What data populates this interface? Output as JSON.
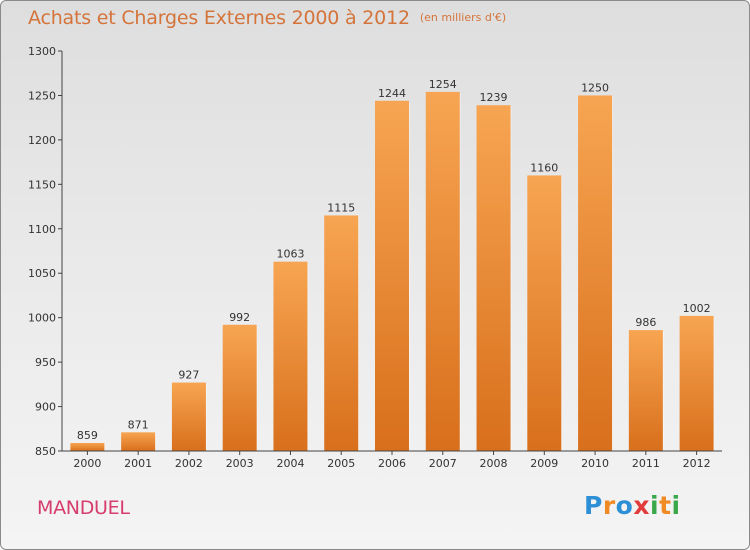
{
  "title": "Achats et Charges Externes 2000 à 2012",
  "unit_label": "(en milliers d'€)",
  "city": "MANDUEL",
  "logo": {
    "text": "Proxiti",
    "letters": [
      {
        "char": "P",
        "color": "#2d8fd6"
      },
      {
        "char": "r",
        "color": "#f08a24"
      },
      {
        "char": "o",
        "color": "#2d8fd6"
      },
      {
        "char": "x",
        "color": "#e23b3b"
      },
      {
        "char": "i",
        "color": "#3aa84a"
      },
      {
        "char": "t",
        "color": "#f08a24"
      },
      {
        "char": "i",
        "color": "#3aa84a"
      }
    ]
  },
  "colors": {
    "bar_light": "#f7a552",
    "bar_dark": "#d86f1c",
    "title": "#d4743a",
    "city": "#d63c6c"
  },
  "chart_data": {
    "type": "bar",
    "title": "Achats et Charges Externes 2000 à 2012",
    "subtitle": "(en milliers d'€)",
    "xlabel": "",
    "ylabel": "",
    "categories": [
      "2000",
      "2001",
      "2002",
      "2003",
      "2004",
      "2005",
      "2006",
      "2007",
      "2008",
      "2009",
      "2010",
      "2011",
      "2012"
    ],
    "values": [
      859,
      871,
      927,
      992,
      1063,
      1115,
      1244,
      1254,
      1239,
      1160,
      1250,
      986,
      1002
    ],
    "ylim": [
      850,
      1300
    ],
    "yticks": [
      850,
      900,
      950,
      1000,
      1050,
      1100,
      1150,
      1200,
      1250,
      1300
    ],
    "grid": false,
    "data_labels": true
  }
}
